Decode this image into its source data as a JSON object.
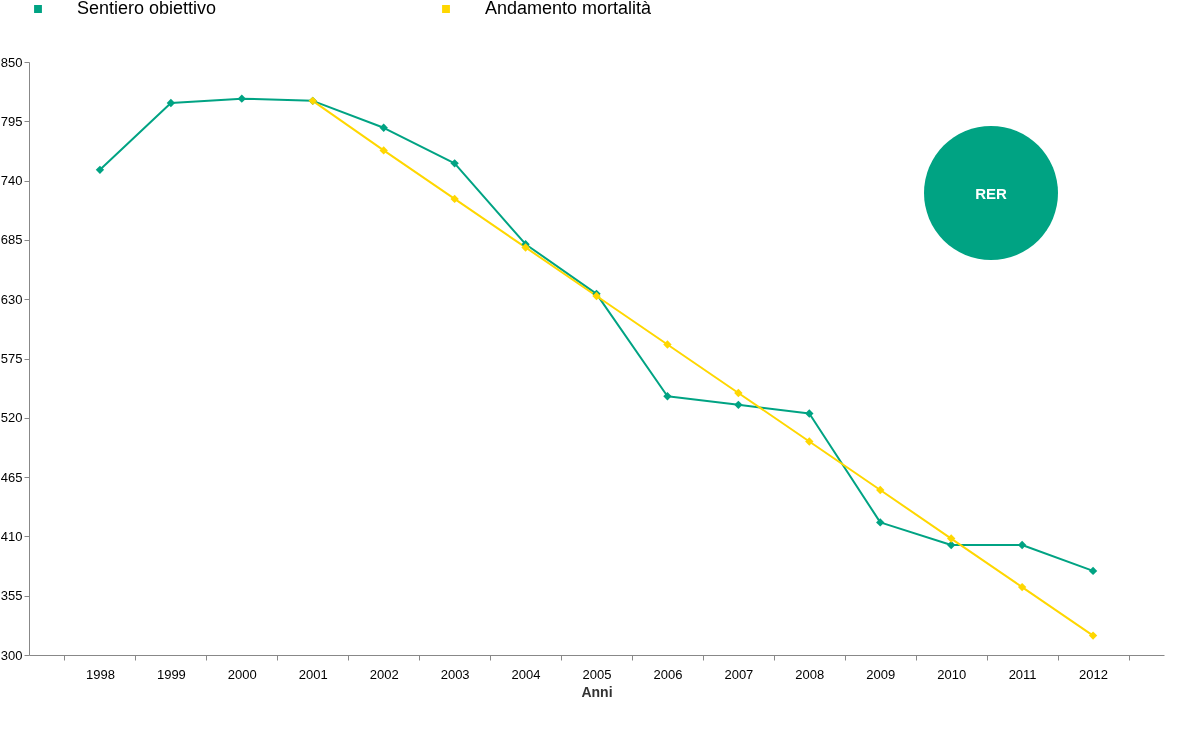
{
  "chart_data": {
    "type": "line",
    "xlabel": "Anni",
    "categories": [
      "1998",
      "1999",
      "2000",
      "2001",
      "2002",
      "2003",
      "2004",
      "2005",
      "2006",
      "2007",
      "2008",
      "2009",
      "2010",
      "2011",
      "2012"
    ],
    "series": [
      {
        "name": "Sentiero obiettivo",
        "color": "#00a383",
        "values": [
          750,
          812,
          816,
          814,
          789,
          756,
          681,
          635,
          540,
          532,
          524,
          423,
          402,
          402,
          378
        ]
      },
      {
        "name": "Andamento mortalità",
        "color": "#ffd700",
        "values": [
          null,
          null,
          null,
          814,
          768,
          723,
          678,
          633,
          588,
          543,
          498,
          453,
          408,
          363,
          318
        ]
      }
    ],
    "ylim": [
      300,
      850
    ],
    "yticks": [
      300,
      355,
      410,
      465,
      520,
      575,
      630,
      685,
      740,
      795,
      850
    ],
    "grid": false,
    "legend": "top",
    "marker": "diamond",
    "line_style": "solid",
    "annotations": [
      "RER"
    ]
  }
}
